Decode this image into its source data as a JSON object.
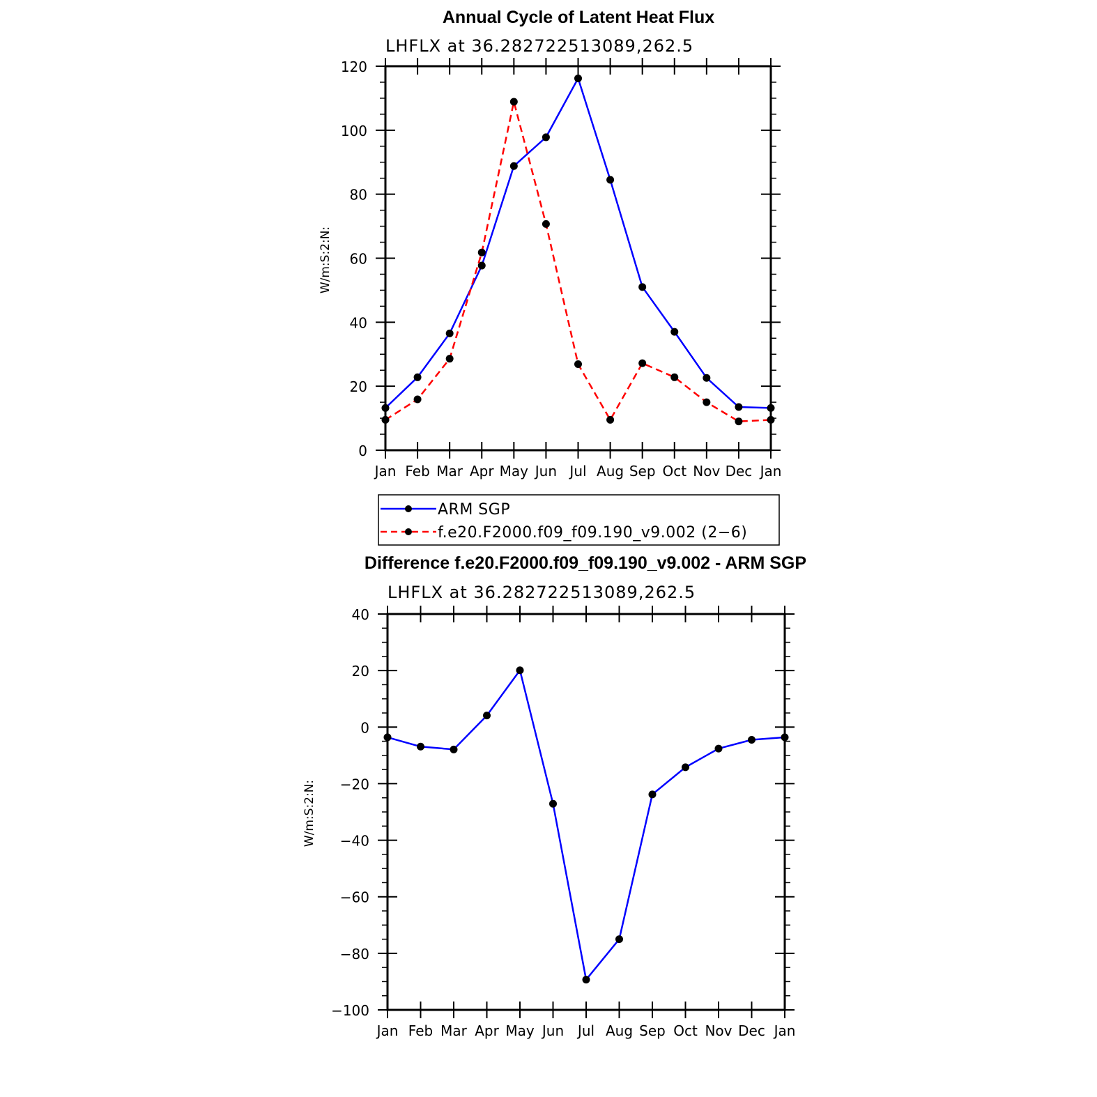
{
  "chart_data": [
    {
      "type": "line",
      "title": "Annual Cycle of Latent Heat Flux",
      "subtitle": "LHFLX at 36.282722513089,262.5",
      "ylabel": "W/m:S:2:N:",
      "xlabel": "",
      "categories": [
        "Jan",
        "Feb",
        "Mar",
        "Apr",
        "May",
        "Jun",
        "Jul",
        "Aug",
        "Sep",
        "Oct",
        "Nov",
        "Dec",
        "Jan"
      ],
      "ylim": [
        0,
        120
      ],
      "yticks": [
        0,
        20,
        40,
        60,
        80,
        100,
        120
      ],
      "grid": false,
      "legend_position": "bottom",
      "series": [
        {
          "name": "ARM SGP",
          "color": "#0000ff",
          "style": "solid",
          "values": [
            13.2,
            22.8,
            36.5,
            57.7,
            88.8,
            97.8,
            116.2,
            84.5,
            51.0,
            37.0,
            22.6,
            13.5,
            13.2
          ]
        },
        {
          "name": "f.e20.F2000.f09_f09.190_v9.002 (2−6)",
          "color": "#ff0000",
          "style": "dashed",
          "values": [
            9.5,
            15.9,
            28.6,
            61.8,
            108.9,
            70.7,
            26.9,
            9.5,
            27.2,
            22.8,
            15.0,
            9.0,
            9.5
          ]
        }
      ]
    },
    {
      "type": "line",
      "title": "Difference f.e20.F2000.f09_f09.190_v9.002 - ARM SGP",
      "subtitle": "LHFLX at 36.282722513089,262.5",
      "ylabel": "W/m:S:2:N:",
      "xlabel": "",
      "categories": [
        "Jan",
        "Feb",
        "Mar",
        "Apr",
        "May",
        "Jun",
        "Jul",
        "Aug",
        "Sep",
        "Oct",
        "Nov",
        "Dec",
        "Jan"
      ],
      "ylim": [
        -100,
        40
      ],
      "yticks": [
        -100,
        -80,
        -60,
        -40,
        -20,
        0,
        20,
        40
      ],
      "grid": false,
      "series": [
        {
          "color": "#0000ff",
          "style": "solid",
          "values": [
            -3.6,
            -6.9,
            -7.9,
            4.1,
            20.1,
            -27.1,
            -89.3,
            -75.0,
            -23.8,
            -14.2,
            -7.6,
            -4.5,
            -3.6
          ]
        }
      ]
    }
  ]
}
